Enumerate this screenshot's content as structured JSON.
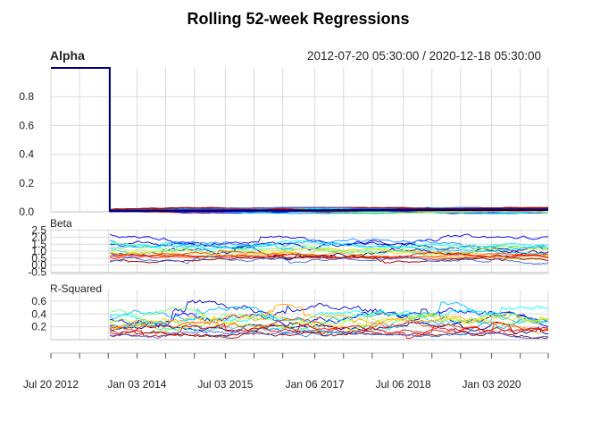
{
  "chart_data": {
    "type": "line",
    "title": "Rolling 52-week Regressions",
    "range_label": "2012-07-20 05:30:00 / 2020-12-18 05:30:00",
    "x_tick_labels": [
      "Jul 20 2012",
      "Jan 03 2014",
      "Jul 03 2015",
      "Jan 06 2017",
      "Jul 06 2018",
      "Jan 03 2020"
    ],
    "x_ticks": [
      "2012-07-20",
      "2014-01-03",
      "2015-07-03",
      "2017-01-06",
      "2018-07-06",
      "2020-01-03"
    ],
    "x_range": [
      "2012-07-20",
      "2020-12-18"
    ],
    "grid": true,
    "panels": [
      {
        "label": "Alpha",
        "ylim": [
          0,
          1.0
        ],
        "y_ticks": [
          "0.0",
          "0.2",
          "0.4",
          "0.6",
          "0.8"
        ],
        "y_tick_values": [
          0,
          0.2,
          0.4,
          0.6,
          0.8
        ],
        "notes": "All series at 1.0 until window fills (~2013-07-19), then near 0.0-0.03 for the remainder",
        "series_summary": [
          {
            "color": "#000080",
            "pre_window": 1.0,
            "post_window_range": [
              0.0,
              0.03
            ]
          },
          {
            "color": "#0000ff",
            "pre_window": 1.0,
            "post_window_range": [
              0.0,
              0.03
            ]
          },
          {
            "color": "#00bfff",
            "pre_window": 1.0,
            "post_window_range": [
              -0.01,
              0.02
            ]
          },
          {
            "color": "#7fff7f",
            "pre_window": 1.0,
            "post_window_range": [
              -0.01,
              0.02
            ]
          }
        ]
      },
      {
        "label": "Beta",
        "ylim": [
          -0.6,
          2.6
        ],
        "y_ticks": [
          "-0.5",
          "0.0",
          "0.5",
          "1.0",
          "1.5",
          "2.0",
          "2.5"
        ],
        "y_tick_values": [
          -0.5,
          0.0,
          0.5,
          1.0,
          1.5,
          2.0,
          2.5
        ]
      },
      {
        "label": "R-Squared",
        "ylim": [
          0.0,
          0.78
        ],
        "y_ticks": [
          "0.2",
          "0.4",
          "0.6"
        ],
        "y_tick_values": [
          0.2,
          0.4,
          0.6
        ]
      }
    ],
    "series_colors": [
      "#000080",
      "#0000cd",
      "#0000ff",
      "#1e90ff",
      "#00bfff",
      "#00ffff",
      "#40e0d0",
      "#7fff7f",
      "#adff2f",
      "#ffd700",
      "#ffa500",
      "#ff4500",
      "#ff0000",
      "#b22222",
      "#8b0000",
      "#4169e1"
    ],
    "beta_series": [
      {
        "color": "#000080",
        "start": 0.9,
        "mean": 0.8,
        "range": [
          -0.5,
          1.4
        ]
      },
      {
        "color": "#0000cd",
        "start": 1.4,
        "mean": 1.3,
        "range": [
          0.6,
          2.3
        ]
      },
      {
        "color": "#0000ff",
        "start": 2.3,
        "mean": 1.7,
        "range": [
          0.9,
          2.5
        ]
      },
      {
        "color": "#1e90ff",
        "start": 1.9,
        "mean": 1.5,
        "range": [
          0.7,
          2.2
        ]
      },
      {
        "color": "#00bfff",
        "start": 1.2,
        "mean": 1.3,
        "range": [
          0.8,
          1.9
        ]
      },
      {
        "color": "#00ffff",
        "start": 1.6,
        "mean": 1.4,
        "range": [
          0.9,
          2.0
        ]
      },
      {
        "color": "#40e0d0",
        "start": 1.0,
        "mean": 1.1,
        "range": [
          0.5,
          1.6
        ]
      },
      {
        "color": "#7fff7f",
        "start": 1.5,
        "mean": 1.2,
        "range": [
          0.7,
          1.8
        ]
      },
      {
        "color": "#adff2f",
        "start": 1.1,
        "mean": 1.0,
        "range": [
          0.5,
          1.5
        ]
      },
      {
        "color": "#ffd700",
        "start": 0.9,
        "mean": 0.9,
        "range": [
          0.4,
          1.4
        ]
      },
      {
        "color": "#ffa500",
        "start": 0.8,
        "mean": 0.8,
        "range": [
          0.3,
          1.3
        ]
      },
      {
        "color": "#ff4500",
        "start": 0.7,
        "mean": 0.8,
        "range": [
          0.2,
          1.2
        ]
      },
      {
        "color": "#ff0000",
        "start": 0.5,
        "mean": 0.6,
        "range": [
          0.0,
          1.1
        ]
      },
      {
        "color": "#b22222",
        "start": 0.6,
        "mean": 0.7,
        "range": [
          0.2,
          1.1
        ]
      },
      {
        "color": "#8b0000",
        "start": 0.3,
        "mean": 0.5,
        "range": [
          0.0,
          1.0
        ]
      },
      {
        "color": "#4169e1",
        "start": 0.2,
        "mean": 0.4,
        "range": [
          -0.2,
          0.9
        ]
      }
    ],
    "rsq_series": [
      {
        "color": "#000080",
        "start": 0.15,
        "mean": 0.18,
        "range": [
          0.05,
          0.45
        ]
      },
      {
        "color": "#0000cd",
        "start": 0.3,
        "mean": 0.35,
        "range": [
          0.05,
          0.75
        ]
      },
      {
        "color": "#0000ff",
        "start": 0.25,
        "mean": 0.4,
        "range": [
          0.05,
          0.72
        ]
      },
      {
        "color": "#1e90ff",
        "start": 0.2,
        "mean": 0.3,
        "range": [
          0.05,
          0.65
        ]
      },
      {
        "color": "#00bfff",
        "start": 0.35,
        "mean": 0.38,
        "range": [
          0.1,
          0.7
        ]
      },
      {
        "color": "#00ffff",
        "start": 0.4,
        "mean": 0.4,
        "range": [
          0.1,
          0.6
        ]
      },
      {
        "color": "#40e0d0",
        "start": 0.2,
        "mean": 0.25,
        "range": [
          0.05,
          0.5
        ]
      },
      {
        "color": "#7fff7f",
        "start": 0.45,
        "mean": 0.35,
        "range": [
          0.1,
          0.7
        ]
      },
      {
        "color": "#adff2f",
        "start": 0.3,
        "mean": 0.28,
        "range": [
          0.05,
          0.55
        ]
      },
      {
        "color": "#ffd700",
        "start": 0.25,
        "mean": 0.3,
        "range": [
          0.05,
          0.6
        ]
      },
      {
        "color": "#ffa500",
        "start": 0.2,
        "mean": 0.25,
        "range": [
          0.05,
          0.55
        ]
      },
      {
        "color": "#ff4500",
        "start": 0.15,
        "mean": 0.2,
        "range": [
          0.03,
          0.5
        ]
      },
      {
        "color": "#ff0000",
        "start": 0.1,
        "mean": 0.15,
        "range": [
          0.02,
          0.45
        ]
      },
      {
        "color": "#b22222",
        "start": 0.1,
        "mean": 0.12,
        "range": [
          0.02,
          0.4
        ]
      },
      {
        "color": "#8b0000",
        "start": 0.05,
        "mean": 0.1,
        "range": [
          0.02,
          0.35
        ]
      },
      {
        "color": "#4169e1",
        "start": 0.08,
        "mean": 0.1,
        "range": [
          0.02,
          0.3
        ]
      }
    ]
  }
}
